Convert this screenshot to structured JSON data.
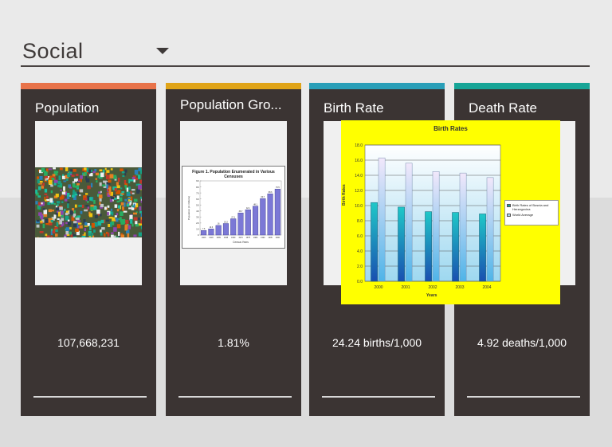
{
  "header": {
    "title": "Social"
  },
  "cards": [
    {
      "title": "Population",
      "value": "107,668,231",
      "accent": "#e8734a"
    },
    {
      "title": "Population Gro...",
      "value": "1.81%",
      "accent": "#e0a418"
    },
    {
      "title": "Birth Rate",
      "value": "24.24 births/1,000",
      "accent": "#2a9fb8"
    },
    {
      "title": "Death Rate",
      "value": "4.92 deaths/1,000",
      "accent": "#17a597"
    }
  ],
  "population_figure": {
    "title": "Figure 1.  Population Enumerated in Various Censuses",
    "ylabel": "Population (in millions)",
    "xlabel": "Census Years",
    "chart_data": {
      "type": "bar",
      "categories": [
        "1903",
        "1918",
        "1939",
        "1948",
        "1960",
        "1970",
        "1975",
        "1980",
        "1990",
        "1995",
        "2000"
      ],
      "values": [
        7.6,
        10.3,
        16.0,
        19.2,
        27.1,
        36.7,
        42.1,
        48.1,
        60.7,
        68.6,
        76.5
      ],
      "ylim": [
        0,
        90
      ],
      "yticks": [
        0,
        10,
        20,
        30,
        40,
        50,
        60,
        70,
        80,
        90
      ]
    }
  },
  "birth_rate_chart": {
    "chart_data": {
      "type": "bar",
      "title": "Birth Rates",
      "xlabel": "Years",
      "ylabel": "Birth Rates",
      "categories": [
        "2000",
        "2001",
        "2002",
        "2003",
        "2004"
      ],
      "series": [
        {
          "name": "Birth Rates of Bosnia and Herzegovina",
          "values": [
            10.4,
            9.8,
            9.2,
            9.1,
            8.9
          ]
        },
        {
          "name": "World Average",
          "values": [
            16.3,
            15.6,
            14.5,
            14.3,
            13.7
          ]
        }
      ],
      "ylim": [
        0,
        18
      ],
      "yticks": [
        "0.0",
        "2.0",
        "4.0",
        "6.0",
        "8.0",
        "10.0",
        "12.0",
        "14.0",
        "16.0",
        "18.0"
      ],
      "grid": true,
      "legend": "right"
    }
  }
}
